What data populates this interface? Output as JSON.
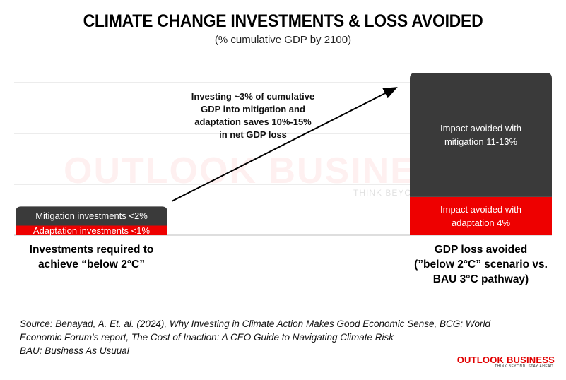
{
  "header": {
    "title": "CLIMATE CHANGE INVESTMENTS & LOSS AVOIDED",
    "subtitle": "(% cumulative GDP by 2100)"
  },
  "chart_data": {
    "type": "bar",
    "stacked": true,
    "grid": true,
    "categories": [
      "Investments required to achieve “below 2°C”",
      "GDP loss avoided (”below 2°C” scenario vs. BAU 3°C pathway)"
    ],
    "category_lines": [
      [
        "Investments required to",
        "achieve “below 2°C”"
      ],
      [
        "GDP loss avoided",
        "(”below 2°C” scenario vs.",
        "BAU 3°C pathway)"
      ]
    ],
    "series": [
      {
        "name": "Adaptation",
        "color": "#ee0000",
        "values": [
          1,
          4
        ],
        "labels": [
          "Adaptation investments <1%",
          "Impact avoided with adaptation 4%"
        ],
        "label_lines": [
          [
            "Adaptation investments <1%"
          ],
          [
            "Impact avoided with",
            "adaptation 4%"
          ]
        ]
      },
      {
        "name": "Mitigation",
        "color": "#3a3a3a",
        "values": [
          2,
          13
        ],
        "labels": [
          "Mitigation investments <2%",
          "Impact avoided with mitigation 11-13%"
        ],
        "label_lines": [
          [
            "Mitigation investments <2%"
          ],
          [
            "Impact avoided with",
            "mitigation 11-13%"
          ]
        ]
      }
    ],
    "ylim": [
      0,
      17
    ],
    "annotation": "Investing ~3% of cumulative GDP into mitigation and adaptation saves 10%-15% in net GDP loss",
    "annotation_lines": [
      "Investing ~3% of cumulative",
      "GDP into mitigation and",
      "adaptation saves 10%-15%",
      "in net GDP loss"
    ]
  },
  "watermark": {
    "main": "OUTLOOK BUSINESS",
    "sub": "THINK BEYOND. STAY AHEAD."
  },
  "source": {
    "line1": "Source: Benayad, A. Et. al. (2024), Why Investing in Climate Action Makes Good Economic Sense, BCG; World",
    "line2": "Economic Forum's report, The Cost of Inaction: A CEO Guide to Navigating Climate Risk",
    "line3": "BAU: Business As Usuual"
  },
  "logo": {
    "main": "OUTLOOK BUSINESS",
    "sub": "THINK BEYOND. STAY AHEAD."
  },
  "colors": {
    "mitigation": "#3a3a3a",
    "adaptation": "#ee0000",
    "grid": "#d9d9d9",
    "brand": "#e10000"
  }
}
